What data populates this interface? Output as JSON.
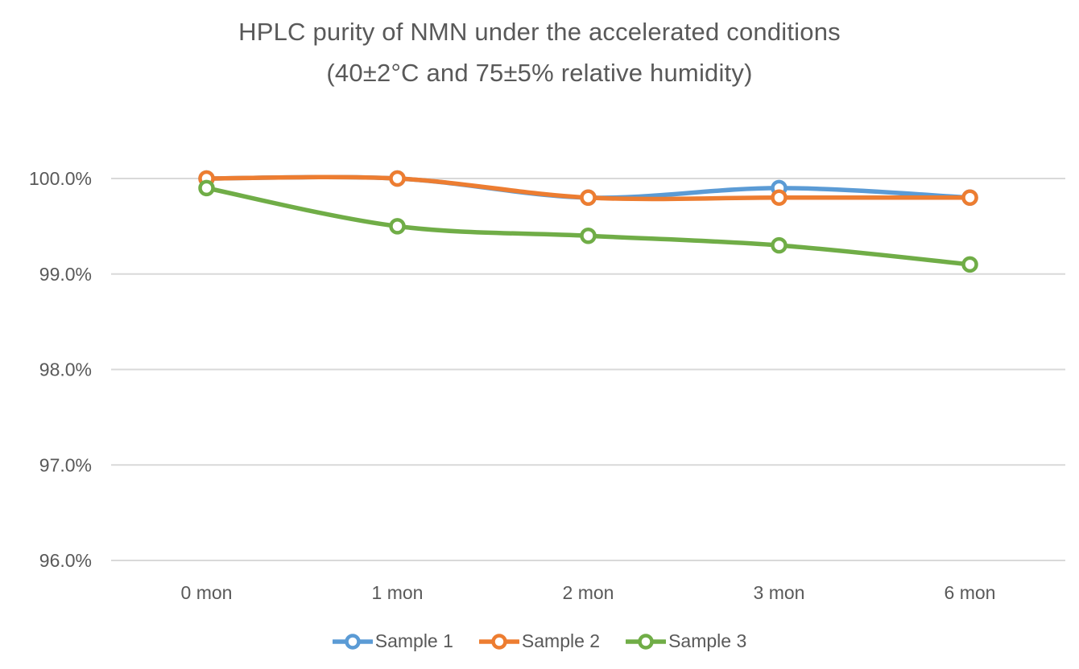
{
  "title": {
    "line1": "HPLC purity of NMN under the accelerated conditions",
    "line2": "(40±2°C and 75±5% relative humidity)"
  },
  "chart_data": {
    "type": "line",
    "title": "HPLC purity of NMN under the accelerated conditions (40±2°C and 75±5% relative humidity)",
    "categories": [
      "0 mon",
      "1 mon",
      "2 mon",
      "3 mon",
      "6 mon"
    ],
    "series": [
      {
        "name": "Sample 1",
        "color": "#5B9BD5",
        "values": [
          100.0,
          100.0,
          99.8,
          99.9,
          99.8
        ]
      },
      {
        "name": "Sample 2",
        "color": "#ED7D31",
        "values": [
          100.0,
          100.0,
          99.8,
          99.8,
          99.8
        ]
      },
      {
        "name": "Sample 3",
        "color": "#70AD47",
        "values": [
          99.9,
          99.5,
          99.4,
          99.3,
          99.1
        ]
      }
    ],
    "xlabel": "",
    "ylabel": "",
    "ylim": [
      96.0,
      100.0
    ],
    "y_ticks": [
      {
        "value": 100.0,
        "label": "100.0%"
      },
      {
        "value": 99.0,
        "label": "99.0%"
      },
      {
        "value": 98.0,
        "label": "98.0%"
      },
      {
        "value": 97.0,
        "label": "97.0%"
      },
      {
        "value": 96.0,
        "label": "96.0%"
      }
    ],
    "grid": true,
    "legend_position": "bottom",
    "line_smoothing": true,
    "marker": "open-circle"
  },
  "colors": {
    "text": "#595959",
    "gridline": "#D9D9D9",
    "background": "#FFFFFF"
  }
}
